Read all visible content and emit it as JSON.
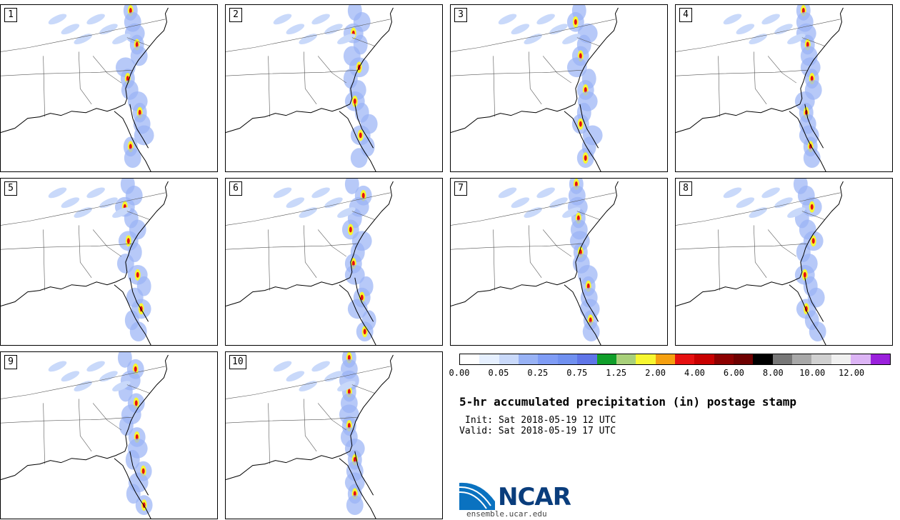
{
  "panels": [
    {
      "number": "1"
    },
    {
      "number": "2"
    },
    {
      "number": "3"
    },
    {
      "number": "4"
    },
    {
      "number": "5"
    },
    {
      "number": "6"
    },
    {
      "number": "7"
    },
    {
      "number": "8"
    },
    {
      "number": "9"
    },
    {
      "number": "10"
    }
  ],
  "colorbar": {
    "colors": [
      "#ffffff",
      "#e6f0ff",
      "#c9d9fa",
      "#98b2f5",
      "#7f9cf5",
      "#7090f0",
      "#5f75e8",
      "#109e2a",
      "#a8d07a",
      "#f7f730",
      "#f5a010",
      "#e61010",
      "#c80000",
      "#8c0000",
      "#6e0000",
      "#000000",
      "#777777",
      "#a8a8a8",
      "#d0d0d0",
      "#f0f0f0",
      "#dcb4f5",
      "#9a20dc"
    ],
    "labels": [
      "0.00",
      "0.05",
      "0.25",
      "0.75",
      "1.25",
      "2.00",
      "4.00",
      "6.00",
      "8.00",
      "10.00",
      "12.00"
    ]
  },
  "title": "5-hr accumulated precipitation (in) postage stamp",
  "init": "Init: Sat 2018-05-19 12 UTC",
  "valid": "Valid: Sat 2018-05-19 17 UTC",
  "logo_text": "NCAR",
  "site": "ensemble.ucar.edu"
}
